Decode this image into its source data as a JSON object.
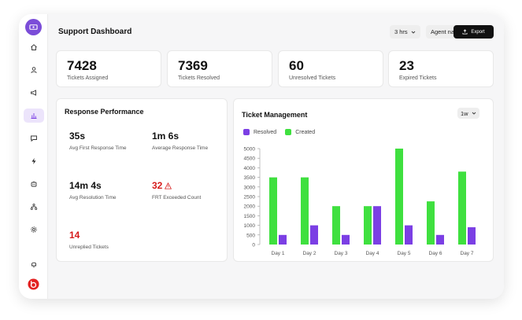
{
  "header": {
    "title": "Support Dashboard",
    "time_filter": "3 hrs",
    "agent_filter": "Agent name",
    "export_label": "Export"
  },
  "sidebar": {
    "items": [
      {
        "icon": "home-icon"
      },
      {
        "icon": "user-icon"
      },
      {
        "icon": "megaphone-icon"
      },
      {
        "icon": "bar-chart-icon",
        "active": true
      },
      {
        "icon": "chat-icon"
      },
      {
        "icon": "lightning-icon"
      },
      {
        "icon": "robot-icon"
      },
      {
        "icon": "hierarchy-icon"
      },
      {
        "icon": "gear-icon"
      }
    ]
  },
  "stats": [
    {
      "value": "7428",
      "label": "Tickets Assigned"
    },
    {
      "value": "7369",
      "label": "Tickets Resolved"
    },
    {
      "value": "60",
      "label": "Unresolved Tickets"
    },
    {
      "value": "23",
      "label": "Expired Tickets"
    }
  ],
  "performance": {
    "title": "Response Performance",
    "metrics": [
      {
        "value": "35s",
        "label": "Avg First Response Time"
      },
      {
        "value": "1m 6s",
        "label": "Average Response Time"
      },
      {
        "value": "14m 4s",
        "label": "Avg Resolution Time"
      },
      {
        "value": "32",
        "label": "FRT Exceeded Count"
      },
      {
        "value": "14",
        "label": "Unreplied Tickets"
      }
    ]
  },
  "ticket_management": {
    "title": "Ticket Management",
    "range": "1w"
  },
  "colors": {
    "resolved": "#7b3fe4",
    "created": "#3fe03f",
    "danger": "#d61b1b"
  },
  "chart_data": {
    "type": "bar",
    "categories": [
      "Day 1",
      "Day 2",
      "Day 3",
      "Day 4",
      "Day 5",
      "Day 6",
      "Day 7"
    ],
    "series": [
      {
        "name": "Created",
        "values": [
          3500,
          3500,
          2000,
          2000,
          5000,
          2250,
          3800
        ]
      },
      {
        "name": "Resolved",
        "values": [
          500,
          1000,
          500,
          2000,
          1000,
          500,
          900
        ]
      }
    ],
    "yticks": [
      "0",
      "500",
      "1000",
      "1500",
      "2000",
      "2500",
      "3000",
      "3500",
      "4000",
      "4500",
      "5000"
    ],
    "ylim": [
      0,
      5000
    ],
    "legend": "top-left"
  }
}
